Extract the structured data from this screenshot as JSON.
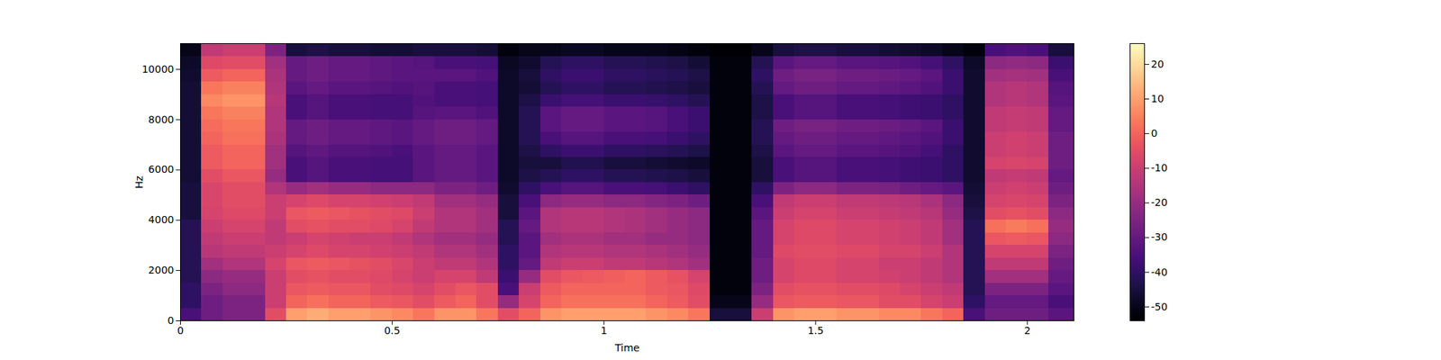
{
  "chart_data": {
    "type": "heatmap",
    "xlabel": "Time",
    "ylabel": "Hz",
    "color": "magma",
    "xlim": [
      0,
      2.11
    ],
    "ylim": [
      0,
      11025
    ],
    "xticks": [
      0,
      0.5,
      1,
      1.5,
      2
    ],
    "yticks": [
      0,
      2000,
      4000,
      6000,
      8000,
      10000
    ],
    "x_edges": [
      0,
      0.05,
      0.1,
      0.15,
      0.2,
      0.25,
      0.3,
      0.35,
      0.4,
      0.45,
      0.5,
      0.55,
      0.6,
      0.65,
      0.7,
      0.75,
      0.8,
      0.85,
      0.9,
      0.95,
      1,
      1.05,
      1.1,
      1.15,
      1.2,
      1.25,
      1.3,
      1.35,
      1.4,
      1.45,
      1.5,
      1.55,
      1.6,
      1.65,
      1.7,
      1.75,
      1.8,
      1.85,
      1.9,
      1.95,
      2,
      2.05,
      2.11
    ],
    "y_edges": [
      0,
      500,
      1000,
      1500,
      2000,
      2500,
      3000,
      3500,
      4000,
      4500,
      5000,
      5500,
      6000,
      6500,
      7000,
      7500,
      8000,
      8500,
      9000,
      9500,
      10000,
      10500,
      11025
    ],
    "cells": [
      [
        -35,
        -28,
        -25,
        -25,
        -5,
        10,
        12,
        10,
        10,
        8,
        6,
        3,
        8,
        8,
        3,
        -5,
        0,
        8,
        10,
        10,
        10,
        10,
        8,
        6,
        3,
        -45,
        -45,
        -10,
        8,
        10,
        10,
        8,
        8,
        6,
        6,
        3,
        0,
        -35,
        -28,
        -28,
        -28,
        -32
      ],
      [
        -40,
        -28,
        -25,
        -25,
        -10,
        0,
        2,
        0,
        0,
        -2,
        -3,
        -5,
        -2,
        0,
        -5,
        -20,
        -8,
        0,
        2,
        2,
        2,
        2,
        0,
        -2,
        -5,
        -50,
        -50,
        -20,
        -3,
        -2,
        -2,
        -3,
        -3,
        -5,
        -5,
        -8,
        -10,
        -40,
        -30,
        -30,
        -30,
        -35
      ],
      [
        -40,
        -25,
        -22,
        -22,
        -10,
        -3,
        -2,
        -3,
        -3,
        -5,
        -6,
        -8,
        -5,
        -3,
        -5,
        -35,
        -10,
        -2,
        0,
        0,
        0,
        0,
        -2,
        -3,
        -6,
        -52,
        -52,
        -25,
        -5,
        -4,
        -4,
        -5,
        -5,
        -6,
        -8,
        -10,
        -12,
        -42,
        -25,
        -25,
        -25,
        -32
      ],
      [
        -42,
        -22,
        -20,
        -20,
        -10,
        -5,
        -4,
        -5,
        -5,
        -6,
        -8,
        -10,
        -8,
        -8,
        -12,
        -38,
        -20,
        -5,
        -3,
        -2,
        -1,
        0,
        -2,
        -4,
        -8,
        -52,
        -52,
        -28,
        -8,
        -6,
        -6,
        -8,
        -8,
        -9,
        -10,
        -12,
        -15,
        -42,
        -18,
        -18,
        -18,
        -30
      ],
      [
        -42,
        -18,
        -15,
        -15,
        -8,
        -3,
        -2,
        -3,
        -4,
        -5,
        -7,
        -10,
        -12,
        -12,
        -15,
        -40,
        -30,
        -12,
        -10,
        -10,
        -12,
        -12,
        -14,
        -15,
        -18,
        -52,
        -52,
        -28,
        -8,
        -6,
        -6,
        -8,
        -8,
        -10,
        -10,
        -12,
        -15,
        -42,
        -12,
        -12,
        -12,
        -28
      ],
      [
        -42,
        -14,
        -12,
        -12,
        -10,
        -8,
        -6,
        -8,
        -8,
        -9,
        -10,
        -12,
        -15,
        -15,
        -18,
        -40,
        -32,
        -15,
        -14,
        -14,
        -15,
        -15,
        -16,
        -18,
        -20,
        -52,
        -52,
        -30,
        -6,
        -5,
        -5,
        -6,
        -6,
        -8,
        -8,
        -10,
        -15,
        -42,
        -8,
        -8,
        -8,
        -25
      ],
      [
        -42,
        -12,
        -10,
        -10,
        -12,
        -10,
        -8,
        -9,
        -10,
        -10,
        -12,
        -15,
        -18,
        -18,
        -20,
        -42,
        -32,
        -18,
        -16,
        -16,
        -18,
        -18,
        -20,
        -20,
        -22,
        -52,
        -52,
        -30,
        -8,
        -6,
        -6,
        -8,
        -8,
        -9,
        -10,
        -12,
        -18,
        -42,
        -3,
        -2,
        -3,
        -22
      ],
      [
        -42,
        -10,
        -8,
        -8,
        -12,
        -5,
        -4,
        -5,
        -5,
        -6,
        -8,
        -12,
        -15,
        -15,
        -18,
        -42,
        -30,
        -15,
        -14,
        -14,
        -15,
        -16,
        -18,
        -20,
        -22,
        -52,
        -52,
        -30,
        -8,
        -6,
        -6,
        -8,
        -8,
        -9,
        -10,
        -12,
        -18,
        -42,
        2,
        4,
        2,
        -20
      ],
      [
        -45,
        -8,
        -6,
        -6,
        -10,
        -3,
        -2,
        -3,
        -4,
        -5,
        -6,
        -10,
        -15,
        -15,
        -18,
        -45,
        -32,
        -15,
        -14,
        -14,
        -15,
        -16,
        -18,
        -20,
        -22,
        -52,
        -52,
        -32,
        -10,
        -8,
        -8,
        -10,
        -10,
        -11,
        -12,
        -14,
        -20,
        -44,
        -5,
        -4,
        -5,
        -22
      ],
      [
        -45,
        -7,
        -5,
        -5,
        -10,
        -8,
        -6,
        -8,
        -8,
        -9,
        -10,
        -12,
        -18,
        -18,
        -20,
        -45,
        -35,
        -22,
        -20,
        -20,
        -22,
        -22,
        -24,
        -25,
        -28,
        -52,
        -52,
        -35,
        -12,
        -10,
        -10,
        -12,
        -12,
        -13,
        -14,
        -16,
        -22,
        -45,
        -8,
        -7,
        -8,
        -25
      ],
      [
        -45,
        -7,
        -5,
        -5,
        -15,
        -20,
        -18,
        -20,
        -20,
        -22,
        -22,
        -22,
        -25,
        -25,
        -28,
        -47,
        -40,
        -35,
        -33,
        -33,
        -35,
        -35,
        -36,
        -38,
        -40,
        -52,
        -52,
        -40,
        -25,
        -22,
        -22,
        -25,
        -25,
        -26,
        -28,
        -30,
        -32,
        -46,
        -10,
        -9,
        -10,
        -28
      ],
      [
        -46,
        -5,
        -3,
        -3,
        -20,
        -35,
        -33,
        -35,
        -35,
        -36,
        -36,
        -32,
        -30,
        -30,
        -32,
        -48,
        -44,
        -42,
        -40,
        -40,
        -42,
        -42,
        -43,
        -44,
        -45,
        -52,
        -52,
        -45,
        -35,
        -33,
        -33,
        -35,
        -35,
        -36,
        -37,
        -38,
        -40,
        -47,
        -12,
        -11,
        -12,
        -30
      ],
      [
        -46,
        -2,
        0,
        0,
        -18,
        -35,
        -33,
        -35,
        -35,
        -36,
        -36,
        -32,
        -30,
        -30,
        -32,
        -48,
        -45,
        -45,
        -43,
        -43,
        -45,
        -45,
        -46,
        -47,
        -48,
        -52,
        -52,
        -45,
        -35,
        -33,
        -33,
        -35,
        -35,
        -36,
        -37,
        -38,
        -40,
        -47,
        -8,
        -7,
        -8,
        -28
      ],
      [
        -46,
        -2,
        0,
        0,
        -18,
        -33,
        -31,
        -33,
        -33,
        -34,
        -35,
        -32,
        -30,
        -30,
        -32,
        -48,
        -44,
        -40,
        -38,
        -38,
        -40,
        -40,
        -41,
        -42,
        -44,
        -52,
        -52,
        -44,
        -32,
        -30,
        -30,
        -32,
        -32,
        -33,
        -34,
        -36,
        -40,
        -47,
        -10,
        -9,
        -10,
        -28
      ],
      [
        -46,
        0,
        2,
        2,
        -16,
        -30,
        -28,
        -30,
        -30,
        -31,
        -32,
        -30,
        -28,
        -28,
        -30,
        -48,
        -42,
        -35,
        -33,
        -33,
        -35,
        -35,
        -36,
        -38,
        -40,
        -52,
        -52,
        -42,
        -30,
        -28,
        -28,
        -30,
        -30,
        -31,
        -32,
        -34,
        -38,
        -47,
        -10,
        -9,
        -10,
        -28
      ],
      [
        -46,
        1,
        3,
        3,
        -15,
        -30,
        -28,
        -30,
        -30,
        -31,
        -32,
        -30,
        -28,
        -28,
        -30,
        -48,
        -42,
        -32,
        -30,
        -30,
        -32,
        -32,
        -33,
        -35,
        -38,
        -52,
        -52,
        -42,
        -28,
        -26,
        -26,
        -28,
        -28,
        -29,
        -30,
        -32,
        -38,
        -47,
        -12,
        -11,
        -12,
        -30
      ],
      [
        -46,
        3,
        5,
        5,
        -15,
        -35,
        -33,
        -35,
        -35,
        -36,
        -36,
        -33,
        -32,
        -32,
        -34,
        -48,
        -42,
        -32,
        -30,
        -30,
        -32,
        -32,
        -33,
        -35,
        -38,
        -52,
        -52,
        -44,
        -35,
        -33,
        -33,
        -35,
        -35,
        -36,
        -37,
        -38,
        -40,
        -47,
        -12,
        -11,
        -12,
        -30
      ],
      [
        -46,
        6,
        8,
        8,
        -14,
        -35,
        -33,
        -35,
        -35,
        -36,
        -36,
        -34,
        -35,
        -35,
        -36,
        -48,
        -44,
        -38,
        -36,
        -36,
        -38,
        -38,
        -39,
        -40,
        -42,
        -52,
        -52,
        -44,
        -35,
        -33,
        -33,
        -35,
        -35,
        -36,
        -37,
        -38,
        -40,
        -47,
        -15,
        -14,
        -15,
        -32
      ],
      [
        -46,
        3,
        5,
        5,
        -15,
        -32,
        -30,
        -32,
        -32,
        -33,
        -34,
        -33,
        -35,
        -35,
        -36,
        -48,
        -46,
        -42,
        -40,
        -40,
        -42,
        -42,
        -43,
        -44,
        -45,
        -52,
        -52,
        -42,
        -30,
        -28,
        -28,
        -30,
        -30,
        -31,
        -32,
        -34,
        -38,
        -47,
        -15,
        -14,
        -15,
        -33
      ],
      [
        -47,
        -2,
        0,
        0,
        -16,
        -30,
        -28,
        -30,
        -30,
        -31,
        -32,
        -32,
        -32,
        -32,
        -34,
        -48,
        -45,
        -40,
        -38,
        -38,
        -40,
        -40,
        -41,
        -42,
        -44,
        -52,
        -52,
        -40,
        -28,
        -26,
        -26,
        -28,
        -28,
        -29,
        -30,
        -32,
        -38,
        -47,
        -18,
        -17,
        -18,
        -35
      ],
      [
        -48,
        -6,
        -5,
        -5,
        -18,
        -30,
        -28,
        -30,
        -30,
        -31,
        -32,
        -33,
        -35,
        -35,
        -36,
        -49,
        -47,
        -42,
        -40,
        -40,
        -42,
        -42,
        -43,
        -44,
        -46,
        -52,
        -52,
        -42,
        -32,
        -30,
        -30,
        -32,
        -32,
        -33,
        -34,
        -36,
        -40,
        -48,
        -22,
        -21,
        -22,
        -38
      ],
      [
        -50,
        -12,
        -10,
        -10,
        -25,
        -45,
        -44,
        -45,
        -45,
        -46,
        -46,
        -45,
        -45,
        -45,
        -46,
        -52,
        -50,
        -50,
        -49,
        -49,
        -50,
        -50,
        -50,
        -51,
        -52,
        -54,
        -54,
        -50,
        -45,
        -44,
        -44,
        -45,
        -45,
        -46,
        -47,
        -48,
        -50,
        -52,
        -35,
        -34,
        -35,
        -45
      ]
    ],
    "colorbar": {
      "range": [
        -54,
        26
      ],
      "ticks": [
        -50,
        -40,
        -30,
        -20,
        -10,
        0,
        10,
        20
      ]
    }
  }
}
